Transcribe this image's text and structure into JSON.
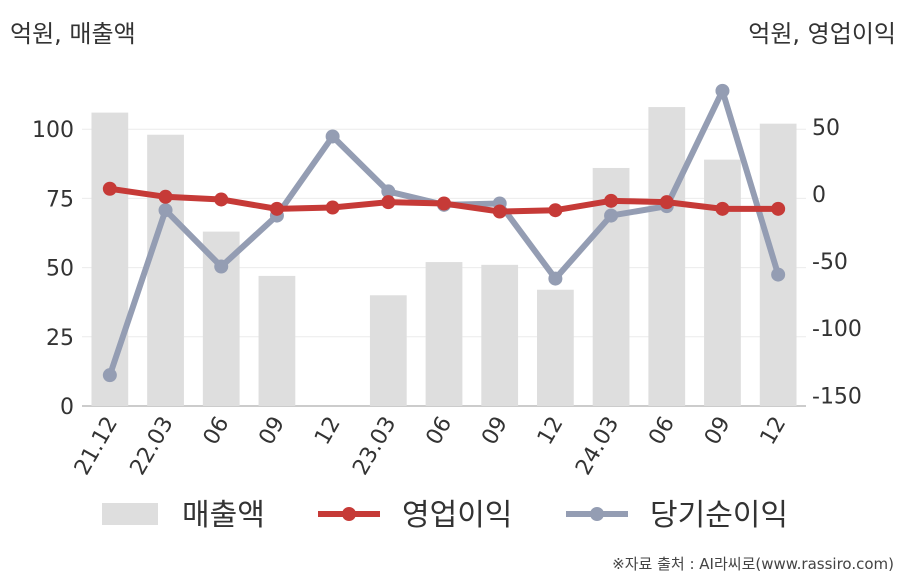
{
  "units": {
    "left": "억원, 매출액",
    "right": "억원, 영업이익"
  },
  "source": "※자료 출처 : AI라씨로(www.rassiro.com)",
  "colors": {
    "revenue": "#dedede",
    "operating": "#c63a37",
    "net": "#949db3"
  },
  "chart_data": {
    "type": "bar+line",
    "categories": [
      "21.12",
      "22.03",
      "06",
      "09",
      "12",
      "23.03",
      "06",
      "09",
      "12",
      "24.03",
      "06",
      "09",
      "12"
    ],
    "left_axis": {
      "ticks": [
        0,
        25,
        50,
        75,
        100
      ],
      "ylim": [
        0,
        125
      ]
    },
    "right_axis": {
      "ticks": [
        -150,
        -100,
        -50,
        0,
        50
      ],
      "ylim": [
        -158,
        100
      ]
    },
    "series": [
      {
        "name": "매출액",
        "type": "bar",
        "axis": "left",
        "values": [
          106,
          98,
          63,
          47,
          null,
          40,
          52,
          51,
          42,
          86,
          108,
          89,
          102
        ]
      },
      {
        "name": "영업이익",
        "type": "line",
        "axis": "right",
        "values": [
          4,
          -2,
          -4,
          -11,
          -10,
          -6,
          -7,
          -13,
          -12,
          -5,
          -6,
          -11,
          -11
        ]
      },
      {
        "name": "당기순이익",
        "type": "line",
        "axis": "right",
        "values": [
          -135,
          -12,
          -54,
          -16,
          43,
          2,
          -8,
          -7,
          -63,
          -16,
          -9,
          77,
          -60
        ]
      }
    ],
    "legend": {
      "position": "bottom",
      "items": [
        "매출액",
        "영업이익",
        "당기순이익"
      ]
    },
    "grid": true
  }
}
